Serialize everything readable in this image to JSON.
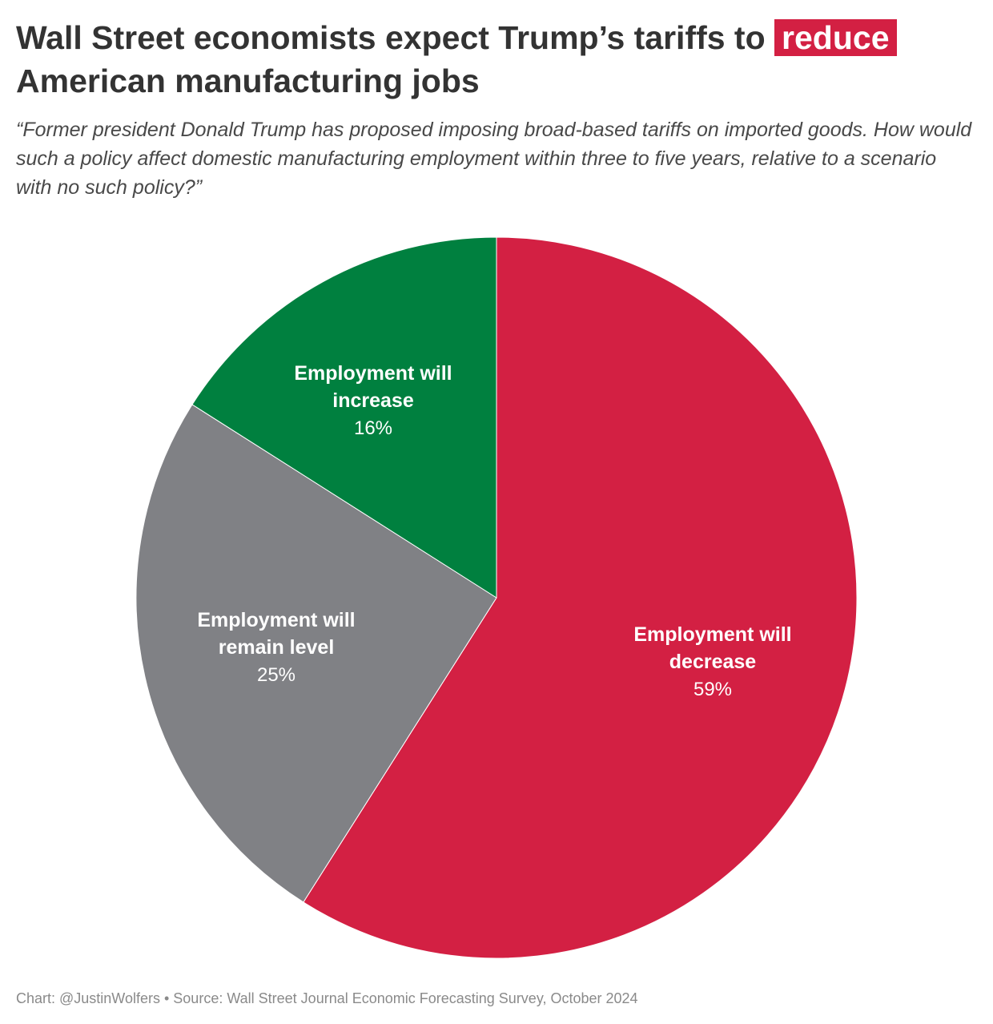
{
  "title": {
    "prefix": "Wall Street economists expect Trump’s tariffs to",
    "highlight": "reduce",
    "suffix": "American manufacturing jobs",
    "highlight_color": "#d32043"
  },
  "subtitle": "“Former president Donald Trump has proposed imposing broad-based tariffs on imported goods. How would such a policy affect domestic manufacturing employment within three to five years, relative to a scenario with no such policy?”",
  "footer": "Chart: @JustinWolfers • Source: Wall Street Journal Economic Forecasting Survey, October 2024",
  "chart_data": {
    "type": "pie",
    "slices": [
      {
        "label_lines": [
          "Employment will",
          "decrease"
        ],
        "value": 59,
        "value_label": "59%",
        "color": "#d32043"
      },
      {
        "label_lines": [
          "Employment will",
          "remain level"
        ],
        "value": 25,
        "value_label": "25%",
        "color": "#808185"
      },
      {
        "label_lines": [
          "Employment will",
          "increase"
        ],
        "value": 16,
        "value_label": "16%",
        "color": "#00803f"
      }
    ]
  }
}
